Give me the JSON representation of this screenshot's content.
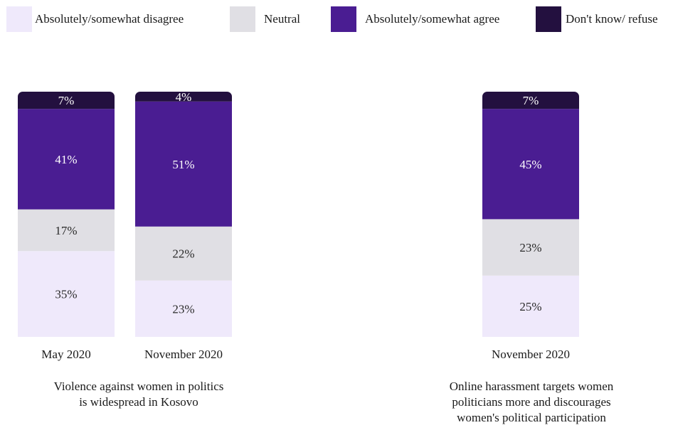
{
  "chart_data": {
    "type": "bar",
    "stacked": true,
    "legend": [
      {
        "name": "Absolutely/somewhat disagree",
        "color": "#efe9fb"
      },
      {
        "name": "Neutral",
        "color": "#e0dfe4"
      },
      {
        "name": "Absolutely/somewhat agree",
        "color": "#4a1d92"
      },
      {
        "name": "Don't know/ refuse",
        "color": "#23103f"
      }
    ],
    "groups": [
      {
        "title_lines": [
          "Violence against women in politics",
          "is widespread in Kosovo"
        ],
        "bars": [
          {
            "category": "May 2020",
            "values": [
              35,
              17,
              41,
              7
            ],
            "labels": [
              "35%",
              "17%",
              "41%",
              "7%"
            ]
          },
          {
            "category": "November 2020",
            "values": [
              23,
              22,
              51,
              4
            ],
            "labels": [
              "23%",
              "22%",
              "51%",
              "4%"
            ]
          }
        ]
      },
      {
        "title_lines": [
          "Online harassment targets women",
          "politicians more and discourages",
          "women's political participation"
        ],
        "bars": [
          {
            "category": "November 2020",
            "values": [
              25,
              23,
              45,
              7
            ],
            "labels": [
              "25%",
              "23%",
              "45%",
              "7%"
            ]
          }
        ]
      }
    ],
    "label_colors": [
      "#2a2a2a",
      "#2a2a2a",
      "#ffffff",
      "#ffffff"
    ]
  }
}
